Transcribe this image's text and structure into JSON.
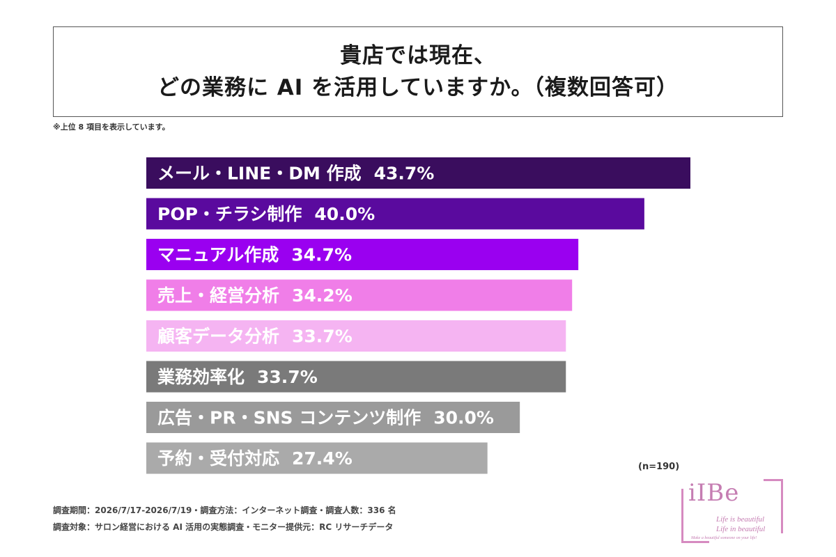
{
  "title": {
    "line1": "貴店では現在、",
    "line2": "どの業務に AI を活用していますか。（複数回答可）"
  },
  "note": "※上位 8 項目を表示しています。",
  "chart_data": {
    "type": "bar",
    "orientation": "horizontal",
    "categories": [
      "メール・LINE・DM 作成",
      "POP・チラシ制作",
      "マニュアル作成",
      "売上・経営分析",
      "顧客データ分析",
      "業務効率化",
      "広告・PR・SNS コンテンツ制作",
      "予約・受付対応"
    ],
    "values": [
      43.7,
      40.0,
      34.7,
      34.2,
      33.7,
      33.7,
      30.0,
      27.4
    ],
    "value_labels": [
      "43.7%",
      "40.0%",
      "34.7%",
      "34.2%",
      "33.7%",
      "33.7%",
      "30.0%",
      "27.4%"
    ],
    "colors": [
      "#3a0d5e",
      "#5a0a9e",
      "#9a00f0",
      "#f07ee8",
      "#f5b4f2",
      "#7a7a7a",
      "#9a9a9a",
      "#aaaaaa"
    ],
    "xlim": [
      0,
      50
    ]
  },
  "sample_size": "(n=190)",
  "footer": {
    "line1": "調査期間：2026/7/17-2026/7/19・調査方法：インターネット調査・調査人数：336 名",
    "line2": "調査対象：サロン経営における AI 活用の実態調査・モニター提供元：RC リサーチデータ"
  },
  "logo": {
    "name": "iIBe",
    "tagline1": "Life is beautiful",
    "tagline2": "Life in beautiful",
    "tagline3": "Make a beautiful someone on your life!"
  }
}
